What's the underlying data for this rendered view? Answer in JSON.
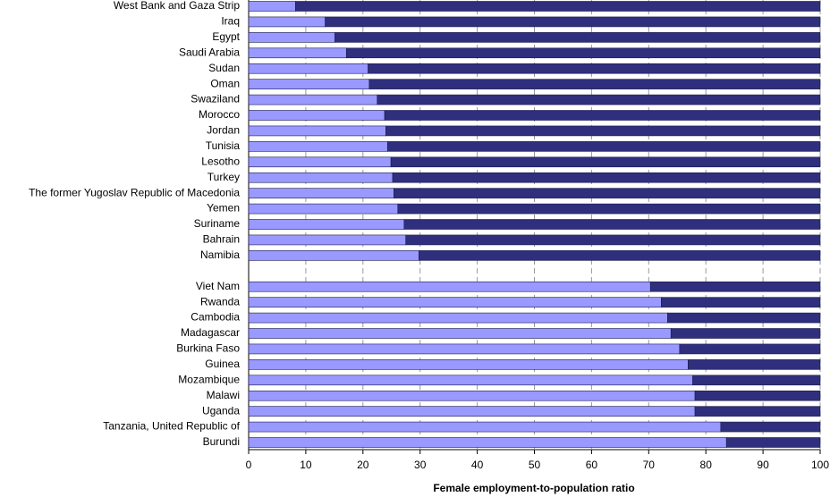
{
  "chart_data": {
    "type": "stacked-bar-horizontal",
    "x_label": "Female employment-to-population ratio",
    "categories": [
      "West Bank and Gaza Strip",
      "Iraq",
      "Egypt",
      "Saudi Arabia",
      "Sudan",
      "Oman",
      "Swaziland",
      "Morocco",
      "Jordan",
      "Tunisia",
      "Lesotho",
      "Turkey",
      "The former Yugoslav Republic of Macedonia",
      "Yemen",
      "Suriname",
      "Bahrain",
      "Namibia",
      null,
      "Viet Nam",
      "Rwanda",
      "Cambodia",
      "Madagascar",
      "Burkina Faso",
      "Guinea",
      "Mozambique",
      "Malawi",
      "Uganda",
      "Tanzania, United Republic of",
      "Burundi"
    ],
    "series": [
      {
        "color": "#9999ff",
        "values": [
          8.2,
          13.4,
          15.1,
          17.1,
          20.9,
          21.1,
          22.5,
          23.8,
          24.0,
          24.3,
          24.9,
          25.2,
          25.4,
          26.1,
          27.2,
          27.5,
          29.8,
          null,
          70.3,
          72.2,
          73.3,
          73.9,
          75.4,
          76.9,
          77.7,
          78.1,
          78.1,
          82.6,
          83.6
        ]
      },
      {
        "color": "#2f2f7d",
        "values": [
          91.8,
          86.6,
          84.9,
          82.9,
          79.1,
          78.9,
          77.5,
          76.2,
          76.0,
          75.7,
          75.1,
          74.8,
          74.6,
          73.9,
          72.8,
          72.5,
          70.2,
          null,
          29.7,
          27.8,
          26.7,
          26.1,
          24.6,
          23.1,
          22.3,
          21.9,
          21.9,
          17.4,
          16.4
        ]
      }
    ],
    "xlim": [
      0,
      100
    ],
    "xticks": [
      0,
      10,
      20,
      30,
      40,
      50,
      60,
      70,
      80,
      90,
      100
    ],
    "grid": true
  }
}
